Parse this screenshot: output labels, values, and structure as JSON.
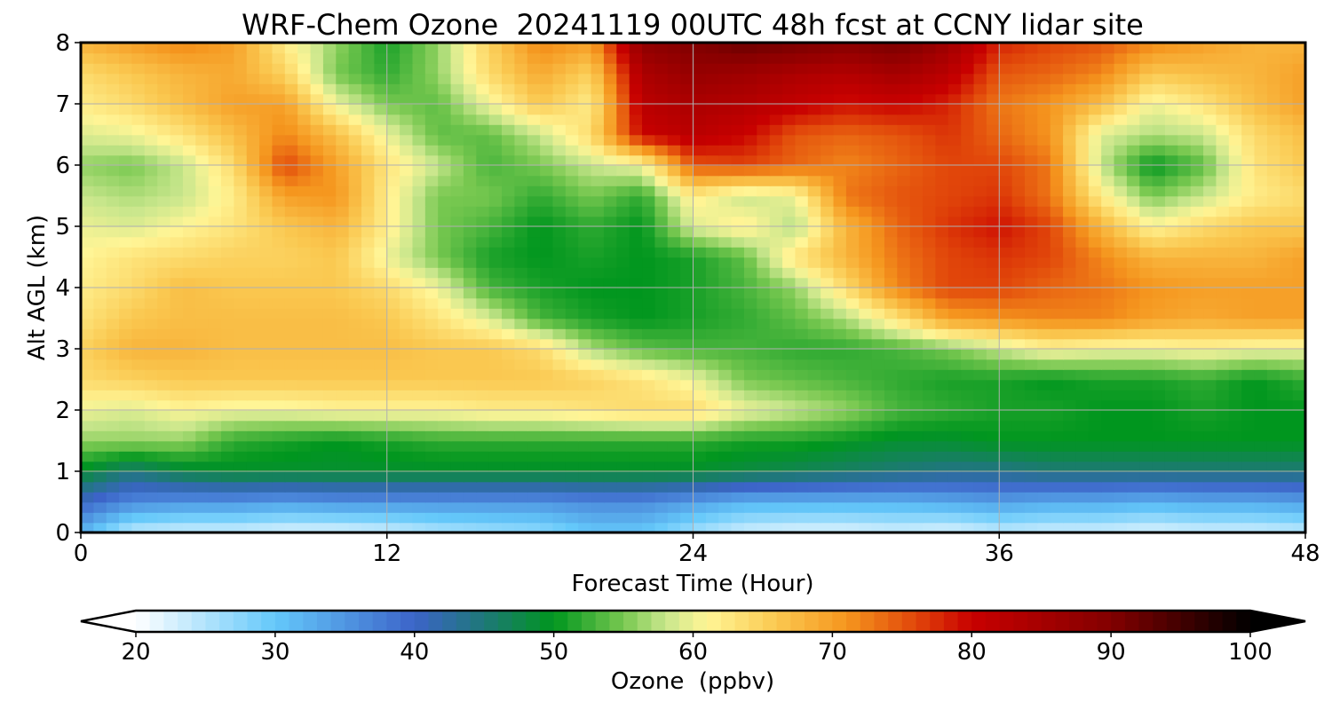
{
  "chart_data": {
    "type": "heatmap",
    "title": "WRF-Chem Ozone  20241119 00UTC 48h fcst at CCNY lidar site",
    "xlabel": "Forecast Time (Hour)",
    "ylabel": "Alt AGL (km)",
    "xlim": [
      0,
      48
    ],
    "ylim": [
      0,
      8
    ],
    "xticks": [
      0,
      12,
      24,
      36,
      48
    ],
    "yticks": [
      0,
      1,
      2,
      3,
      4,
      5,
      6,
      7,
      8
    ],
    "grid": true,
    "colorbar": {
      "label": "Ozone  (ppbv)",
      "ticks": [
        20,
        30,
        40,
        50,
        60,
        70,
        80,
        90,
        100
      ],
      "range": [
        20,
        100
      ],
      "extend": "both",
      "orientation": "horizontal",
      "colors": [
        [
          20,
          "#ffffff"
        ],
        [
          30,
          "#64c8fa"
        ],
        [
          40,
          "#3c64c8"
        ],
        [
          45,
          "#1e7878"
        ],
        [
          50,
          "#00961e"
        ],
        [
          55,
          "#78c850"
        ],
        [
          58,
          "#c8e68c"
        ],
        [
          61,
          "#fff596"
        ],
        [
          66,
          "#fac850"
        ],
        [
          71,
          "#f5961e"
        ],
        [
          76,
          "#e1460a"
        ],
        [
          80,
          "#c80000"
        ],
        [
          90,
          "#820000"
        ],
        [
          100,
          "#000000"
        ]
      ]
    },
    "grid_x_hours": [
      0,
      2,
      4,
      6,
      8,
      10,
      12,
      14,
      16,
      18,
      20,
      22,
      24,
      26,
      28,
      30,
      32,
      34,
      36,
      38,
      40,
      42,
      44,
      46,
      48
    ],
    "grid_y_km": [
      0,
      0.5,
      1,
      1.5,
      2,
      2.5,
      3,
      3.5,
      4,
      4.5,
      5,
      5.5,
      6,
      6.5,
      7,
      7.5,
      8
    ],
    "ozone_ppbv": [
      [
        32,
        24,
        23,
        23,
        22,
        22,
        23,
        25,
        26,
        27,
        30,
        30,
        26,
        23,
        22,
        22,
        23,
        22,
        24,
        23,
        23,
        22,
        23,
        23,
        24
      ],
      [
        40,
        36,
        35,
        35,
        34,
        35,
        35,
        35,
        35,
        35,
        36,
        36,
        34,
        32,
        32,
        32,
        32,
        33,
        34,
        33,
        33,
        32,
        33,
        33,
        34
      ],
      [
        49,
        45,
        48,
        49,
        49,
        49,
        49,
        49,
        49,
        49,
        49,
        49,
        49,
        48,
        47,
        46,
        45,
        44,
        44,
        45,
        45,
        45,
        45,
        45,
        45
      ],
      [
        56,
        56,
        56,
        52,
        51,
        50,
        51,
        52,
        52,
        52,
        52,
        52,
        52,
        51,
        51,
        50,
        49,
        49,
        50,
        50,
        50,
        50,
        50,
        50,
        50
      ],
      [
        60,
        59,
        61,
        60,
        60,
        61,
        61,
        61,
        62,
        62,
        63,
        64,
        64,
        60,
        58,
        56,
        53,
        52,
        51,
        51,
        50,
        50,
        51,
        50,
        50
      ],
      [
        64,
        65,
        66,
        66,
        66,
        66,
        66,
        66,
        66,
        66,
        65,
        63,
        60,
        55,
        54,
        53,
        52,
        51,
        51,
        50,
        51,
        51,
        52,
        50,
        52
      ],
      [
        65,
        68,
        68,
        67,
        67,
        67,
        67,
        66,
        66,
        64,
        57,
        54,
        53,
        53,
        52,
        52,
        53,
        55,
        58,
        61,
        60,
        60,
        61,
        60,
        60
      ],
      [
        63,
        66,
        67,
        67,
        67,
        67,
        66,
        63,
        59,
        53,
        51,
        50,
        51,
        52,
        54,
        57,
        63,
        70,
        71,
        72,
        72,
        70,
        69,
        70,
        70
      ],
      [
        62,
        64,
        67,
        66,
        66,
        66,
        64,
        60,
        53,
        51,
        50,
        50,
        51,
        53,
        56,
        64,
        72,
        76,
        76,
        74,
        73,
        71,
        70,
        70,
        70
      ],
      [
        61,
        63,
        64,
        65,
        65,
        66,
        60,
        55,
        51,
        50,
        51,
        50,
        51,
        54,
        63,
        68,
        73,
        76,
        77,
        76,
        72,
        68,
        68,
        68,
        70
      ],
      [
        60,
        59,
        61,
        63,
        66,
        68,
        62,
        55,
        53,
        50,
        52,
        50,
        59,
        62,
        57,
        68,
        74,
        77,
        79,
        76,
        68,
        61,
        64,
        66,
        66
      ],
      [
        58,
        57,
        58,
        62,
        70,
        71,
        62,
        55,
        55,
        52,
        55,
        52,
        62,
        58,
        60,
        73,
        75,
        76,
        77,
        73,
        62,
        55,
        58,
        62,
        64
      ],
      [
        56,
        55,
        58,
        64,
        76,
        70,
        63,
        58,
        53,
        55,
        58,
        60,
        75,
        76,
        74,
        72,
        74,
        76,
        76,
        73,
        58,
        50,
        54,
        63,
        66
      ],
      [
        59,
        60,
        63,
        67,
        72,
        67,
        60,
        54,
        54,
        58,
        64,
        80,
        82,
        80,
        75,
        74,
        75,
        77,
        74,
        71,
        59,
        57,
        58,
        64,
        67
      ],
      [
        62,
        64,
        67,
        70,
        70,
        60,
        55,
        54,
        60,
        66,
        62,
        82,
        84,
        83,
        81,
        79,
        80,
        78,
        73,
        71,
        67,
        60,
        63,
        67,
        70
      ],
      [
        64,
        66,
        68,
        69,
        65,
        55,
        52,
        56,
        64,
        69,
        65,
        84,
        87,
        86,
        84,
        83,
        85,
        82,
        75,
        74,
        72,
        66,
        67,
        68,
        70
      ],
      [
        68,
        70,
        72,
        70,
        62,
        56,
        51,
        56,
        65,
        72,
        70,
        88,
        90,
        92,
        91,
        89,
        91,
        86,
        78,
        76,
        75,
        72,
        70,
        68,
        68
      ]
    ]
  }
}
